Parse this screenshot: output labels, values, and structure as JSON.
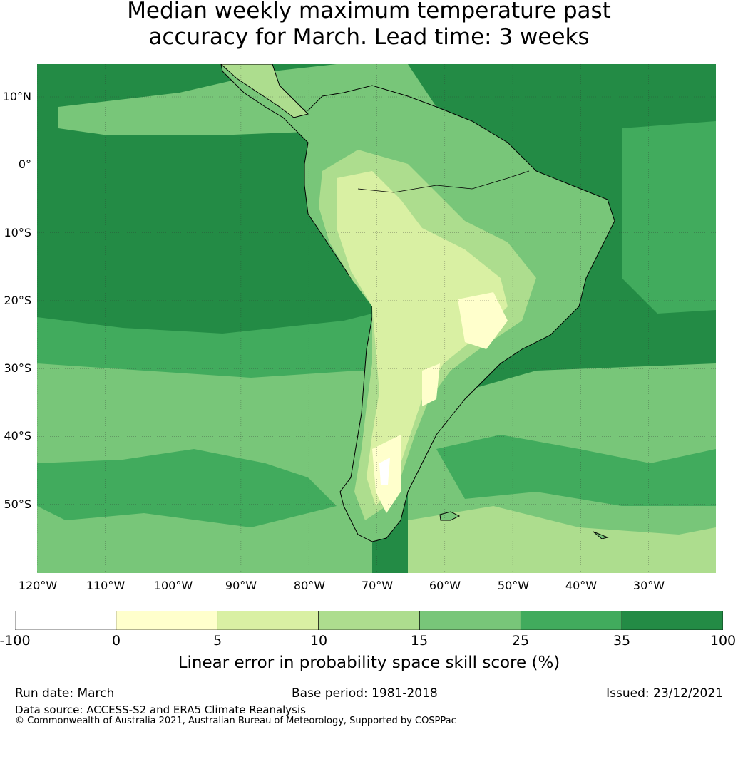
{
  "title": {
    "line1": "Median weekly maximum temperature past",
    "line2": "accuracy for March. Lead time: 3 weeks"
  },
  "map": {
    "lat_labels": [
      "10°N",
      "0°",
      "10°S",
      "20°S",
      "30°S",
      "40°S",
      "50°S"
    ],
    "lon_labels": [
      "120°W",
      "110°W",
      "100°W",
      "90°W",
      "80°W",
      "70°W",
      "60°W",
      "50°W",
      "40°W",
      "30°W"
    ],
    "ocean_color": "#238b45",
    "coastline_color": "#000000"
  },
  "colorbar": {
    "bins": [
      {
        "min": -100,
        "max": 0,
        "color": "#ffffff"
      },
      {
        "min": 0,
        "max": 5,
        "color": "#ffffcc"
      },
      {
        "min": 5,
        "max": 10,
        "color": "#d9f0a3"
      },
      {
        "min": 10,
        "max": 15,
        "color": "#addd8e"
      },
      {
        "min": 15,
        "max": 25,
        "color": "#78c679"
      },
      {
        "min": 25,
        "max": 35,
        "color": "#41ab5d"
      },
      {
        "min": 35,
        "max": 100,
        "color": "#238b45"
      }
    ],
    "tick_labels": [
      "-100",
      "0",
      "5",
      "10",
      "15",
      "25",
      "35",
      "100"
    ],
    "label": "Linear error in probability space skill score (%)"
  },
  "footer": {
    "run_date": "Run date: March",
    "base_period": "Base period: 1981-2018",
    "issued": "Issued: 23/12/2021",
    "data_source": "Data source: ACCESS-S2 and ERA5 Climate Reanalysis",
    "copyright": "© Commonwealth of Australia 2021, Australian Bureau of Meteorology, Supported by COSPPac"
  }
}
